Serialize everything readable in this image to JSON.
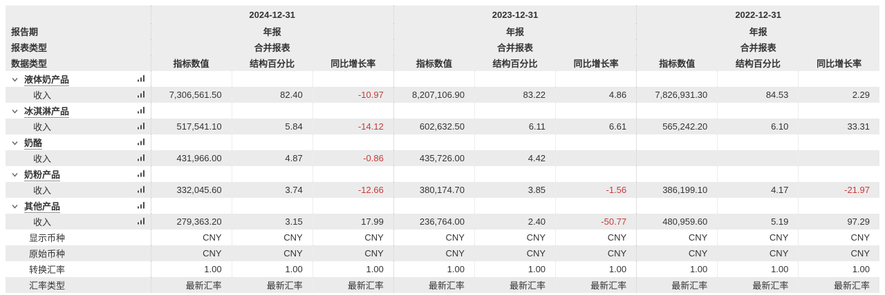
{
  "header": {
    "left_labels": {
      "report_period": "报告期",
      "report_type": "报表类型",
      "data_type": "数据类型"
    },
    "periods": [
      {
        "date": "2024-12-31",
        "period_type": "年报",
        "statement_type": "合并报表"
      },
      {
        "date": "2023-12-31",
        "period_type": "年报",
        "statement_type": "合并报表"
      },
      {
        "date": "2022-12-31",
        "period_type": "年报",
        "statement_type": "合并报表"
      }
    ],
    "metric_columns": [
      "指标数值",
      "结构百分比",
      "同比增长率"
    ]
  },
  "segments": [
    {
      "name": "液体奶产品",
      "row_label": "收入",
      "values": [
        [
          "7,306,561.50",
          "82.40",
          "-10.97"
        ],
        [
          "8,207,106.90",
          "83.22",
          "4.86"
        ],
        [
          "7,826,931.30",
          "84.53",
          "2.29"
        ]
      ]
    },
    {
      "name": "冰淇淋产品",
      "row_label": "收入",
      "values": [
        [
          "517,541.10",
          "5.84",
          "-14.12"
        ],
        [
          "602,632.50",
          "6.11",
          "6.61"
        ],
        [
          "565,242.20",
          "6.10",
          "33.31"
        ]
      ]
    },
    {
      "name": "奶酪",
      "row_label": "收入",
      "values": [
        [
          "431,966.00",
          "4.87",
          "-0.86"
        ],
        [
          "435,726.00",
          "4.42",
          ""
        ],
        [
          "",
          "",
          ""
        ]
      ]
    },
    {
      "name": "奶粉产品",
      "row_label": "收入",
      "values": [
        [
          "332,045.60",
          "3.74",
          "-12.66"
        ],
        [
          "380,174.70",
          "3.85",
          "-1.56"
        ],
        [
          "386,199.10",
          "4.17",
          "-21.97"
        ]
      ]
    },
    {
      "name": "其他产品",
      "row_label": "收入",
      "values": [
        [
          "279,363.20",
          "3.15",
          "17.99"
        ],
        [
          "236,764.00",
          "2.40",
          "-50.77"
        ],
        [
          "480,959.60",
          "5.19",
          "97.29"
        ]
      ]
    }
  ],
  "footer_rows": [
    {
      "label": "显示币种",
      "values": [
        "CNY",
        "CNY",
        "CNY",
        "CNY",
        "CNY",
        "CNY",
        "CNY",
        "CNY",
        "CNY"
      ]
    },
    {
      "label": "原始币种",
      "values": [
        "CNY",
        "CNY",
        "CNY",
        "CNY",
        "CNY",
        "CNY",
        "CNY",
        "CNY",
        "CNY"
      ]
    },
    {
      "label": "转换汇率",
      "values": [
        "1.00",
        "1.00",
        "1.00",
        "1.00",
        "1.00",
        "1.00",
        "1.00",
        "1.00",
        "1.00"
      ]
    },
    {
      "label": "汇率类型",
      "values": [
        "最新汇率",
        "最新汇率",
        "最新汇率",
        "最新汇率",
        "最新汇率",
        "最新汇率",
        "最新汇率",
        "最新汇率",
        "最新汇率"
      ]
    }
  ],
  "icons": {
    "expand": "chevron-down-icon",
    "chart": "bar-chart-icon"
  },
  "colors": {
    "negative_value": "#c53b3b",
    "text": "#333333",
    "stripe_row": "#ebebeb",
    "header_background": "#ededed"
  }
}
